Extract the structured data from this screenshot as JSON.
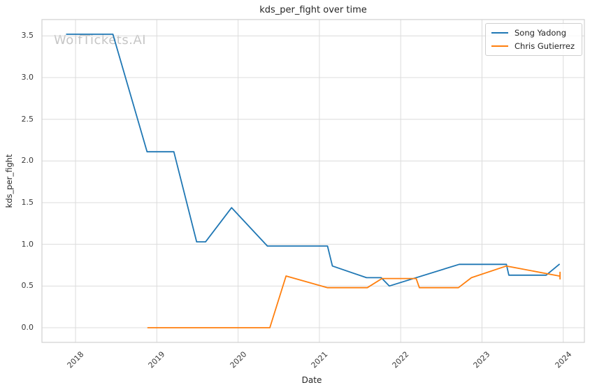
{
  "title": "kds_per_fight over time",
  "watermark": "WolfTickets.AI",
  "xlabel": "Date",
  "ylabel": "kds_per_fight",
  "colors": {
    "song_yadong": "#1f77b4",
    "chris_gutierrez": "#ff7f0e",
    "grid": "#dcdcdc",
    "spine": "#d0d0d0",
    "watermark": "#c6c6c6"
  },
  "legend": [
    {
      "label": "Song Yadong",
      "color": "#1f77b4"
    },
    {
      "label": "Chris Gutierrez",
      "color": "#ff7f0e"
    }
  ],
  "chart_data": {
    "type": "line",
    "title": "kds_per_fight over time",
    "xlabel": "Date",
    "ylabel": "kds_per_fight",
    "grid": true,
    "legend_position": "upper right",
    "xlim": [
      2017.587,
      2024.26
    ],
    "ylim": [
      -0.176,
      3.696
    ],
    "x_ticks": [
      2018,
      2019,
      2020,
      2021,
      2022,
      2023,
      2024
    ],
    "x_tick_labels": [
      "2018",
      "2019",
      "2020",
      "2021",
      "2022",
      "2023",
      "2024"
    ],
    "y_ticks": [
      0.0,
      0.5,
      1.0,
      1.5,
      2.0,
      2.5,
      3.0,
      3.5
    ],
    "y_tick_labels": [
      "0.0",
      "0.5",
      "1.0",
      "1.5",
      "2.0",
      "2.5",
      "3.0",
      "3.5"
    ],
    "series": [
      {
        "name": "Song Yadong",
        "color": "#1f77b4",
        "points": [
          [
            2017.89,
            3.52
          ],
          [
            2018.46,
            3.52
          ],
          [
            2018.88,
            2.11
          ],
          [
            2019.21,
            2.11
          ],
          [
            2019.49,
            1.03
          ],
          [
            2019.6,
            1.03
          ],
          [
            2019.92,
            1.44
          ],
          [
            2020.36,
            0.98
          ],
          [
            2021.1,
            0.98
          ],
          [
            2021.16,
            0.74
          ],
          [
            2021.58,
            0.6
          ],
          [
            2021.76,
            0.6
          ],
          [
            2021.86,
            0.5
          ],
          [
            2022.72,
            0.76
          ],
          [
            2023.3,
            0.76
          ],
          [
            2023.33,
            0.63
          ],
          [
            2023.79,
            0.63
          ],
          [
            2023.95,
            0.76
          ]
        ]
      },
      {
        "name": "Chris Gutierrez",
        "color": "#ff7f0e",
        "points": [
          [
            2018.89,
            0.0
          ],
          [
            2020.39,
            0.0
          ],
          [
            2020.59,
            0.62
          ],
          [
            2021.1,
            0.48
          ],
          [
            2021.59,
            0.48
          ],
          [
            2021.77,
            0.59
          ],
          [
            2022.19,
            0.59
          ],
          [
            2022.23,
            0.48
          ],
          [
            2022.71,
            0.48
          ],
          [
            2022.87,
            0.6
          ],
          [
            2023.3,
            0.74
          ],
          [
            2023.95,
            0.62
          ]
        ],
        "end_tick": {
          "x": 2023.96,
          "y1": 0.585,
          "y2": 0.665
        }
      }
    ]
  }
}
